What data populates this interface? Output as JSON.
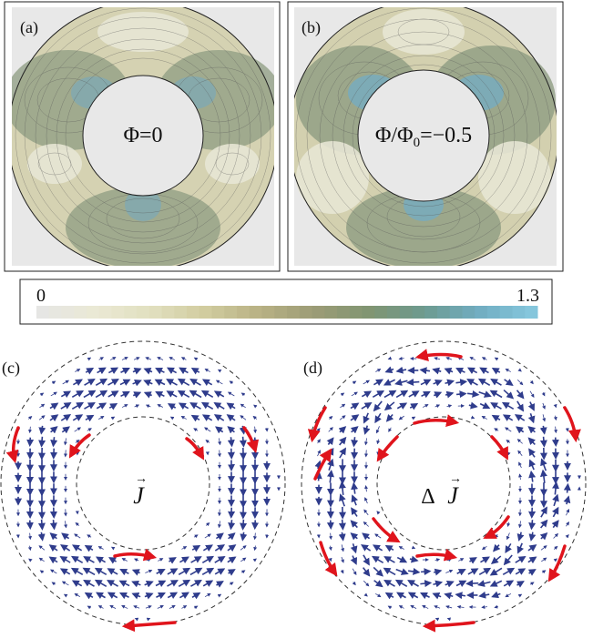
{
  "panels": {
    "a": {
      "tag": "(a)",
      "label": "Φ=0"
    },
    "b": {
      "tag": "(b)",
      "label_main": "Φ/Φ",
      "label_sub": "0",
      "label_tail": "=−0.5"
    },
    "c": {
      "tag": "(c)",
      "label": "J",
      "arrow": "→"
    },
    "d": {
      "tag": "(d)",
      "label_prefix": "Δ",
      "label": "J",
      "arrow": "→"
    }
  },
  "colorbar": {
    "min_label": "0",
    "max_label": "1.3",
    "colors": [
      "#e6e6e4",
      "#eae9d4",
      "#e1dfbf",
      "#d1cc9f",
      "#b8b184",
      "#9c9c76",
      "#819572",
      "#6d9a8e",
      "#70acc0",
      "#85c6dc"
    ]
  },
  "colors": {
    "arrow_blue": "#2f3c8c",
    "arrow_red": "#e0141c",
    "panel_bg": "#e8e8e8"
  }
}
